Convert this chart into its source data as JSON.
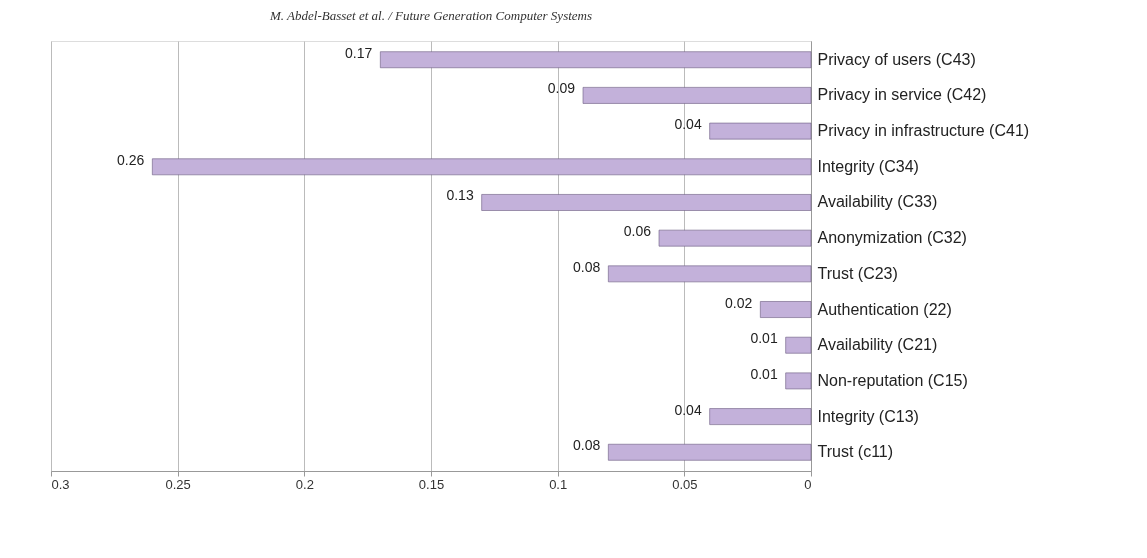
{
  "chart_data": {
    "type": "bar",
    "orientation": "horizontal",
    "annotations": [
      "M. Abdel-Basset et al. / Future Generation Computer Systems"
    ],
    "categories": [
      "Privacy of users (C43)",
      "Privacy in service (C42)",
      "Privacy in infrastructure (C41)",
      "Integrity  (C34)",
      "Availability (C33)",
      "Anonymization (C32)",
      "Trust  (C23)",
      "Authentication (22)",
      "Availability (C21)",
      "Non-reputation (C15)",
      "Integrity (C13)",
      "Trust (c11)"
    ],
    "values": [
      0.17,
      0.09,
      0.04,
      0.26,
      0.13,
      0.06,
      0.08,
      0.02,
      0.01,
      0.01,
      0.04,
      0.08
    ],
    "color": "#c3b1da",
    "xlim": [
      0.3,
      0
    ],
    "xticks": [
      0.3,
      0.25,
      0.2,
      0.15,
      0.1,
      0.05,
      0
    ],
    "grid": "x",
    "data_labels": true
  }
}
